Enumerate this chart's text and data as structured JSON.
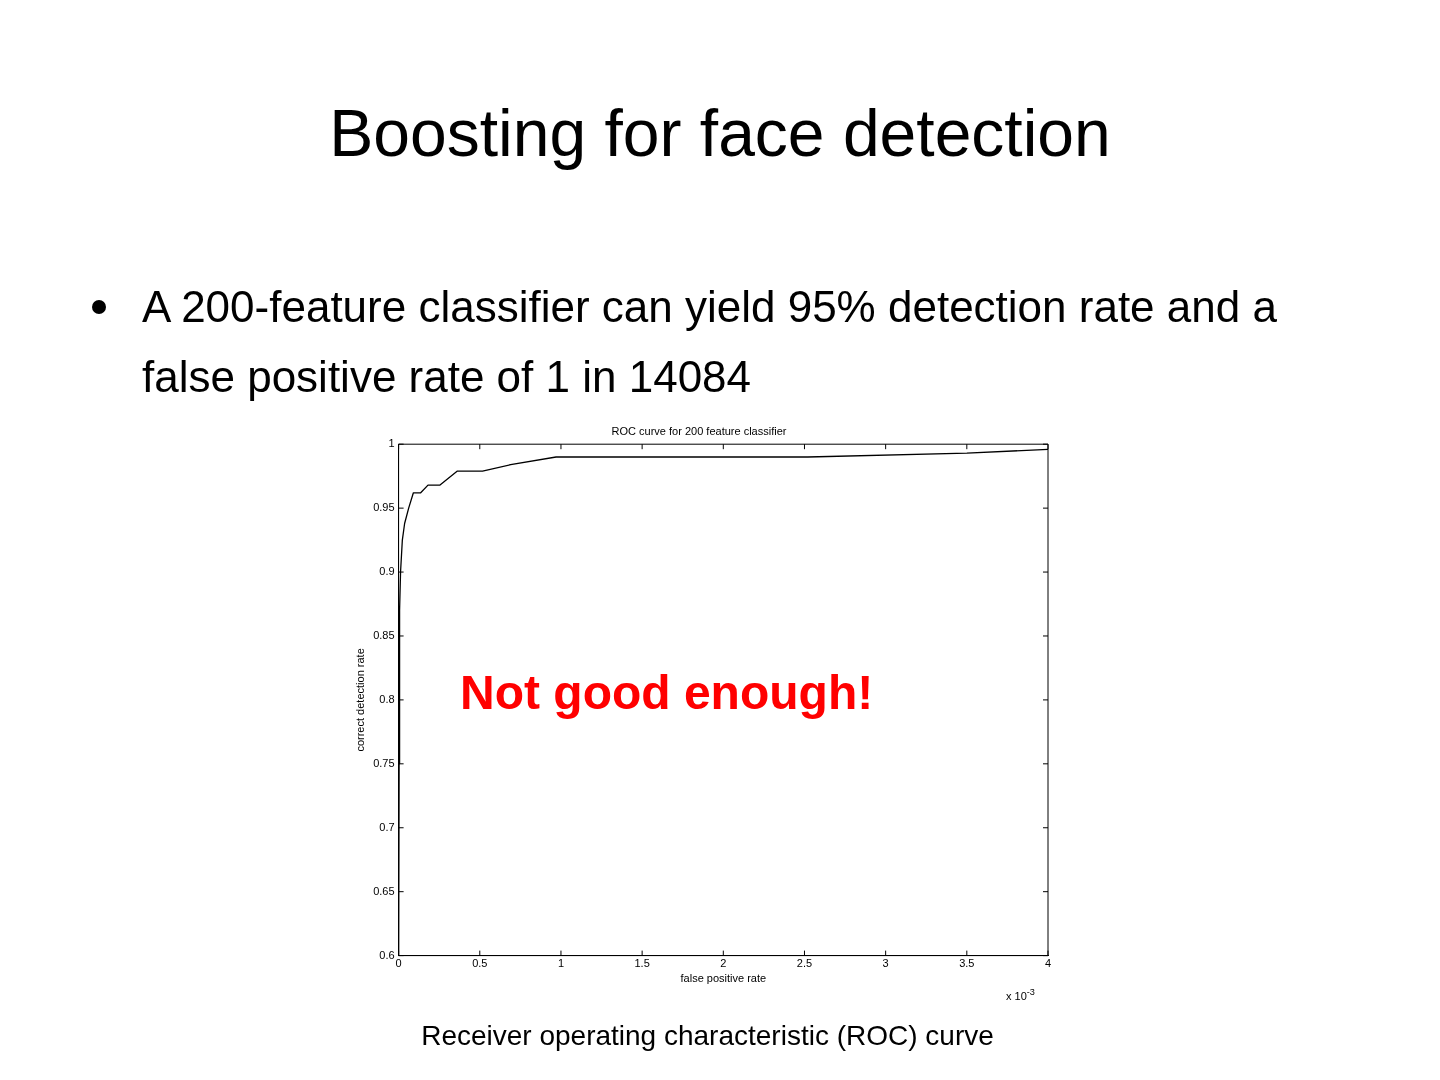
{
  "chart_data": {
    "type": "line",
    "title": "ROC curve for 200 feature classifier",
    "xlabel": "false positive rate",
    "ylabel": "correct detection rate",
    "annotations": [
      "Boosting for face detection",
      "A 200-feature classifier can yield 95% detection rate and a false positive rate of 1 in 14084",
      "Not good enough!",
      "Receiver operating characteristic (ROC) curve",
      "x 10$^{-3}$"
    ],
    "x": [
      0,
      0.003,
      0.006,
      0.012,
      0.023,
      0.037,
      0.062,
      0.091,
      0.136,
      0.181,
      0.255,
      0.362,
      0.517,
      0.69,
      0.97,
      2.52,
      3.5,
      4
    ],
    "series": [
      {
        "color": "#000000",
        "values": [
          0.6,
          0.75,
          0.87,
          0.9,
          0.925,
          0.938,
          0.95,
          0.962,
          0.962,
          0.968,
          0.968,
          0.979,
          0.979,
          0.984,
          0.99,
          0.99,
          0.993,
          0.996
        ]
      }
    ],
    "xlim": [
      0,
      4
    ],
    "xticks": [
      0,
      0.5,
      1,
      1.5,
      2,
      2.5,
      3,
      3.5,
      4
    ],
    "ylim": [
      0.6,
      1
    ],
    "yticks": [
      0.6,
      0.65,
      0.7,
      0.75,
      0.8,
      0.85,
      0.9,
      0.95,
      1
    ],
    "grid": false,
    "legend": false,
    "marker": "none",
    "line_style": "solid"
  }
}
